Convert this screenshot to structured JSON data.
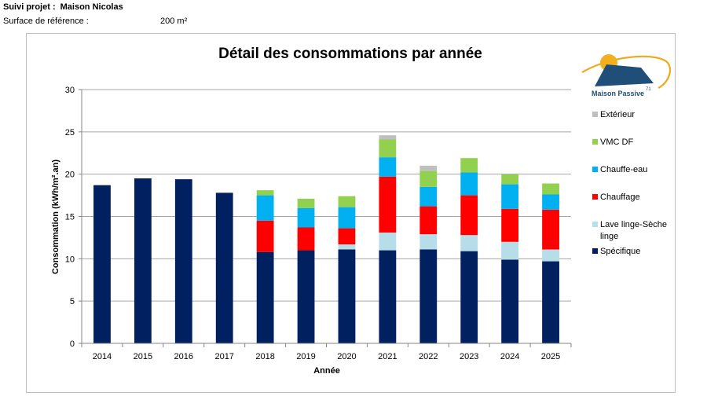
{
  "header": {
    "project_label": "Suivi projet :",
    "project_name": "Maison Nicolas",
    "surface_label": "Surface de référence :",
    "surface_value": "200  m²"
  },
  "logo": {
    "text": "Maison Passive",
    "superscript": "71"
  },
  "colors": {
    "Spécifique": "#002060",
    "Lave linge-Sèche linge": "#b7dde8",
    "Chauffage": "#ff0000",
    "Chauffe-eau": "#00b0f0",
    "VMC DF": "#92d050",
    "Extérieur": "#bfbfbf"
  },
  "chart_data": {
    "type": "bar",
    "stacked": true,
    "title": "Détail des consommations par année",
    "xlabel": "Année",
    "ylabel": "Consommation (kWh/m².an)",
    "ylim": [
      0,
      30
    ],
    "yticks": [
      0,
      5,
      10,
      15,
      20,
      25,
      30
    ],
    "grid": true,
    "legend_position": "right",
    "categories": [
      "2014",
      "2015",
      "2016",
      "2017",
      "2018",
      "2019",
      "2020",
      "2021",
      "2022",
      "2023",
      "2024",
      "2025"
    ],
    "series": [
      {
        "name": "Spécifique",
        "values": [
          18.7,
          19.5,
          19.4,
          17.8,
          10.8,
          11.0,
          11.1,
          11.0,
          11.1,
          10.9,
          9.9,
          9.7
        ]
      },
      {
        "name": "Lave linge-Sèche linge",
        "values": [
          0,
          0,
          0,
          0,
          0,
          0,
          0.6,
          2.1,
          1.8,
          1.9,
          2.1,
          1.4
        ]
      },
      {
        "name": "Chauffage",
        "values": [
          0,
          0,
          0,
          0,
          3.7,
          2.7,
          1.9,
          6.6,
          3.3,
          4.7,
          3.9,
          4.7
        ]
      },
      {
        "name": "Chauffe-eau",
        "values": [
          0,
          0,
          0,
          0,
          3.0,
          2.3,
          2.5,
          2.3,
          2.3,
          2.7,
          2.9,
          1.8
        ]
      },
      {
        "name": "VMC DF",
        "values": [
          0,
          0,
          0,
          0,
          0.6,
          1.1,
          1.3,
          2.1,
          1.9,
          1.7,
          1.2,
          1.3
        ]
      },
      {
        "name": "Extérieur",
        "values": [
          0,
          0,
          0,
          0,
          0,
          0,
          0,
          0.5,
          0.6,
          0,
          0,
          0
        ]
      }
    ],
    "legend_order": [
      "Extérieur",
      "VMC DF",
      "Chauffe-eau",
      "Chauffage",
      "Lave linge-Sèche linge",
      "Spécifique"
    ]
  }
}
